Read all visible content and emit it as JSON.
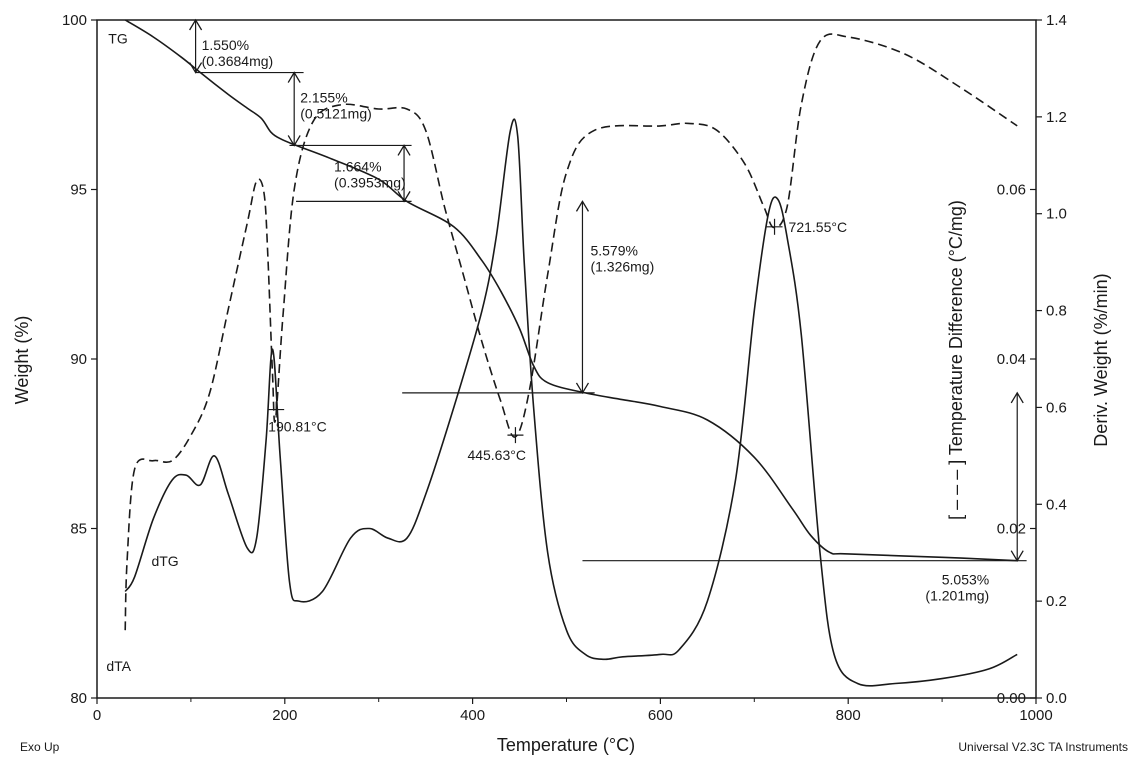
{
  "footer": {
    "left": "Exo Up",
    "right": "Universal V2.3C TA Instruments"
  },
  "chart_data": {
    "type": "line",
    "xlabel": "Temperature (°C)",
    "ylabel_left": "Weight (%)",
    "ylabel_right_inner": "[ – – – ] Temperature Difference (°C/mg)",
    "ylabel_right_outer": "Deriv. Weight (%/min)",
    "xlim": [
      0,
      1000
    ],
    "ylim_left": [
      80,
      100
    ],
    "ylim_right_outer": [
      0,
      1.4
    ],
    "ylim_right_inner": [
      0,
      0.08
    ],
    "x_ticks": [
      "0",
      "200",
      "400",
      "600",
      "800",
      "1000"
    ],
    "y_ticks_left": [
      "80",
      "85",
      "90",
      "95",
      "100"
    ],
    "y_ticks_right_outer": [
      "0.0",
      "0.2",
      "0.4",
      "0.6",
      "0.8",
      "1.0",
      "1.2",
      "1.4"
    ],
    "y_ticks_right_inner": [
      "0.00",
      "0.02",
      "0.04",
      "0.06"
    ],
    "grid": false,
    "series": [
      {
        "name": "TG",
        "axis": "left",
        "style": "solid",
        "points": [
          [
            30,
            100
          ],
          [
            60,
            99.5
          ],
          [
            90,
            98.9
          ],
          [
            110,
            98.45
          ],
          [
            140,
            97.8
          ],
          [
            160,
            97.4
          ],
          [
            175,
            97.1
          ],
          [
            185,
            96.7
          ],
          [
            195,
            96.5
          ],
          [
            212,
            96.3
          ],
          [
            250,
            95.9
          ],
          [
            300,
            95.3
          ],
          [
            330,
            94.65
          ],
          [
            380,
            93.9
          ],
          [
            410,
            92.9
          ],
          [
            430,
            92
          ],
          [
            450,
            90.9
          ],
          [
            465,
            89.8
          ],
          [
            480,
            89.3
          ],
          [
            520,
            89.0
          ],
          [
            560,
            88.8
          ],
          [
            600,
            88.6
          ],
          [
            650,
            88.2
          ],
          [
            700,
            87.1
          ],
          [
            740,
            85.6
          ],
          [
            760,
            84.8
          ],
          [
            780,
            84.3
          ],
          [
            800,
            84.25
          ],
          [
            900,
            84.15
          ],
          [
            980,
            84.05
          ]
        ]
      },
      {
        "name": "dTG",
        "axis": "right_outer",
        "style": "solid",
        "points": [
          [
            30,
            0.22
          ],
          [
            40,
            0.25
          ],
          [
            60,
            0.37
          ],
          [
            80,
            0.45
          ],
          [
            95,
            0.46
          ],
          [
            110,
            0.44
          ],
          [
            125,
            0.5
          ],
          [
            140,
            0.42
          ],
          [
            160,
            0.31
          ],
          [
            170,
            0.33
          ],
          [
            180,
            0.53
          ],
          [
            187,
            0.72
          ],
          [
            195,
            0.5
          ],
          [
            205,
            0.24
          ],
          [
            215,
            0.2
          ],
          [
            240,
            0.22
          ],
          [
            270,
            0.33
          ],
          [
            290,
            0.35
          ],
          [
            310,
            0.33
          ],
          [
            330,
            0.33
          ],
          [
            350,
            0.42
          ],
          [
            380,
            0.6
          ],
          [
            410,
            0.8
          ],
          [
            425,
            0.95
          ],
          [
            440,
            1.17
          ],
          [
            448,
            1.16
          ],
          [
            455,
            0.9
          ],
          [
            465,
            0.6
          ],
          [
            480,
            0.3
          ],
          [
            500,
            0.14
          ],
          [
            520,
            0.09
          ],
          [
            540,
            0.08
          ],
          [
            560,
            0.085
          ],
          [
            600,
            0.09
          ],
          [
            620,
            0.1
          ],
          [
            650,
            0.2
          ],
          [
            680,
            0.45
          ],
          [
            700,
            0.8
          ],
          [
            715,
            1.0
          ],
          [
            725,
            1.03
          ],
          [
            735,
            0.95
          ],
          [
            750,
            0.75
          ],
          [
            770,
            0.3
          ],
          [
            785,
            0.09
          ],
          [
            810,
            0.03
          ],
          [
            850,
            0.03
          ],
          [
            900,
            0.04
          ],
          [
            950,
            0.06
          ],
          [
            980,
            0.09
          ]
        ]
      },
      {
        "name": "dTA",
        "axis": "right_inner",
        "style": "dashed",
        "points": [
          [
            30,
            0.008
          ],
          [
            32,
            0.016
          ],
          [
            40,
            0.027
          ],
          [
            60,
            0.028
          ],
          [
            80,
            0.028
          ],
          [
            100,
            0.031
          ],
          [
            120,
            0.036
          ],
          [
            140,
            0.046
          ],
          [
            160,
            0.056
          ],
          [
            170,
            0.061
          ],
          [
            178,
            0.0595
          ],
          [
            182,
            0.052
          ],
          [
            187,
            0.038
          ],
          [
            190,
            0.0328
          ],
          [
            198,
            0.045
          ],
          [
            210,
            0.06
          ],
          [
            230,
            0.068
          ],
          [
            260,
            0.07
          ],
          [
            300,
            0.0695
          ],
          [
            330,
            0.0695
          ],
          [
            350,
            0.067
          ],
          [
            370,
            0.058
          ],
          [
            390,
            0.05
          ],
          [
            410,
            0.042
          ],
          [
            430,
            0.035
          ],
          [
            445,
            0.0308
          ],
          [
            460,
            0.036
          ],
          [
            480,
            0.05
          ],
          [
            500,
            0.062
          ],
          [
            530,
            0.067
          ],
          [
            600,
            0.0675
          ],
          [
            630,
            0.0678
          ],
          [
            660,
            0.067
          ],
          [
            690,
            0.063
          ],
          [
            710,
            0.058
          ],
          [
            721,
            0.0555
          ],
          [
            735,
            0.058
          ],
          [
            750,
            0.07
          ],
          [
            770,
            0.0775
          ],
          [
            800,
            0.078
          ],
          [
            860,
            0.076
          ],
          [
            920,
            0.072
          ],
          [
            980,
            0.0675
          ]
        ]
      }
    ],
    "annotations": [
      {
        "label": "TG",
        "x": 12,
        "y_left": 99.3
      },
      {
        "label": "dTG",
        "x": 58,
        "y_left": 83.9
      },
      {
        "label": "dTA",
        "x": 10,
        "y_left": 80.8
      },
      {
        "label": "190.81°C",
        "x": 190.81,
        "series": "dTA"
      },
      {
        "label": "445.63°C",
        "x": 445.63,
        "series": "dTA"
      },
      {
        "label": "721.55°C",
        "x": 721.55,
        "series": "dTA"
      }
    ],
    "steps": [
      {
        "x": 105,
        "y_top": 100,
        "y_bot": 98.45,
        "line": [
          105,
          220
        ],
        "pct": "1.550%",
        "mass": "(0.3684mg)"
      },
      {
        "x": 210,
        "y_top": 98.45,
        "y_bot": 96.3,
        "line": [
          205,
          335
        ],
        "pct": "2.155%",
        "mass": "(0.5121mg)"
      },
      {
        "x": 327,
        "y_top": 96.3,
        "y_bot": 94.65,
        "line": [
          212,
          335
        ],
        "pct": "1.664%",
        "mass": "(0.3953mg)"
      },
      {
        "x": 517,
        "y_top": 94.65,
        "y_bot": 89.0,
        "line": [
          325,
          530
        ],
        "pct": "5.579%",
        "mass": "(1.326mg)"
      },
      {
        "x": 980,
        "y_top": 89.0,
        "y_bot": 84.05,
        "line": [
          517,
          990
        ],
        "pct": "5.053%",
        "mass": "(1.201mg)"
      }
    ]
  }
}
